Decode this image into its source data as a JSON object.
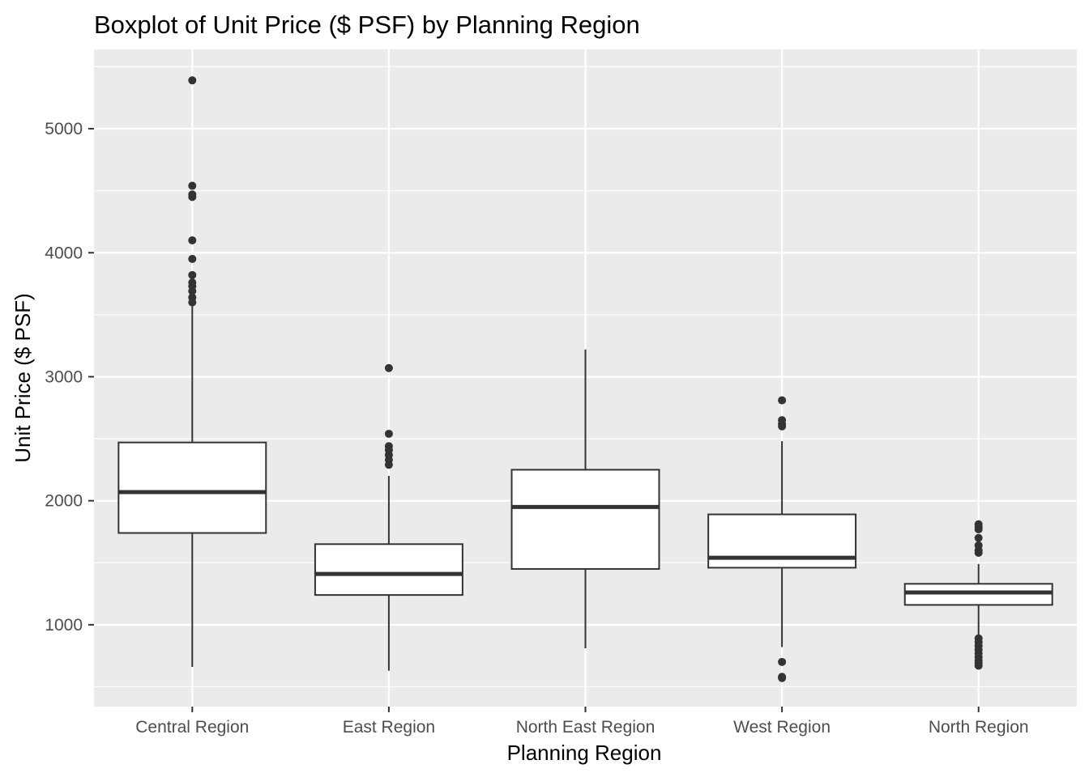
{
  "chart_data": {
    "type": "boxplot",
    "title": "Boxplot of Unit Price ($ PSF) by Planning Region",
    "xlabel": "Planning Region",
    "ylabel": "Unit Price ($ PSF)",
    "ylim": [
      340,
      5640
    ],
    "y_ticks": [
      1000,
      2000,
      3000,
      4000,
      5000
    ],
    "grid": true,
    "categories": [
      "Central Region",
      "East Region",
      "North East Region",
      "West Region",
      "North Region"
    ],
    "boxes": [
      {
        "name": "Central Region",
        "whisker_low": 660,
        "q1": 1740,
        "median": 2070,
        "q3": 2470,
        "whisker_high": 3580,
        "outliers": [
          3600,
          3640,
          3690,
          3730,
          3760,
          3820,
          3950,
          4100,
          4450,
          4470,
          4540,
          5390
        ]
      },
      {
        "name": "East Region",
        "whisker_low": 630,
        "q1": 1240,
        "median": 1410,
        "q3": 1650,
        "whisker_high": 2200,
        "outliers": [
          2290,
          2330,
          2370,
          2410,
          2440,
          2540,
          3070
        ]
      },
      {
        "name": "North East Region",
        "whisker_low": 810,
        "q1": 1450,
        "median": 1950,
        "q3": 2250,
        "whisker_high": 3220,
        "outliers": []
      },
      {
        "name": "West Region",
        "whisker_low": 820,
        "q1": 1460,
        "median": 1540,
        "q3": 1890,
        "whisker_high": 2480,
        "outliers": [
          570,
          580,
          700,
          2600,
          2620,
          2650,
          2810
        ]
      },
      {
        "name": "North Region",
        "whisker_low": 910,
        "q1": 1160,
        "median": 1260,
        "q3": 1330,
        "whisker_high": 1490,
        "outliers": [
          670,
          690,
          710,
          740,
          770,
          800,
          830,
          860,
          890,
          1580,
          1600,
          1640,
          1700,
          1770,
          1790,
          1810
        ]
      }
    ],
    "colors": {
      "panel": "#ebebeb",
      "grid": "#ffffff",
      "box_fill": "#ffffff",
      "stroke": "#333333",
      "tick_text": "#4d4d4d"
    }
  }
}
